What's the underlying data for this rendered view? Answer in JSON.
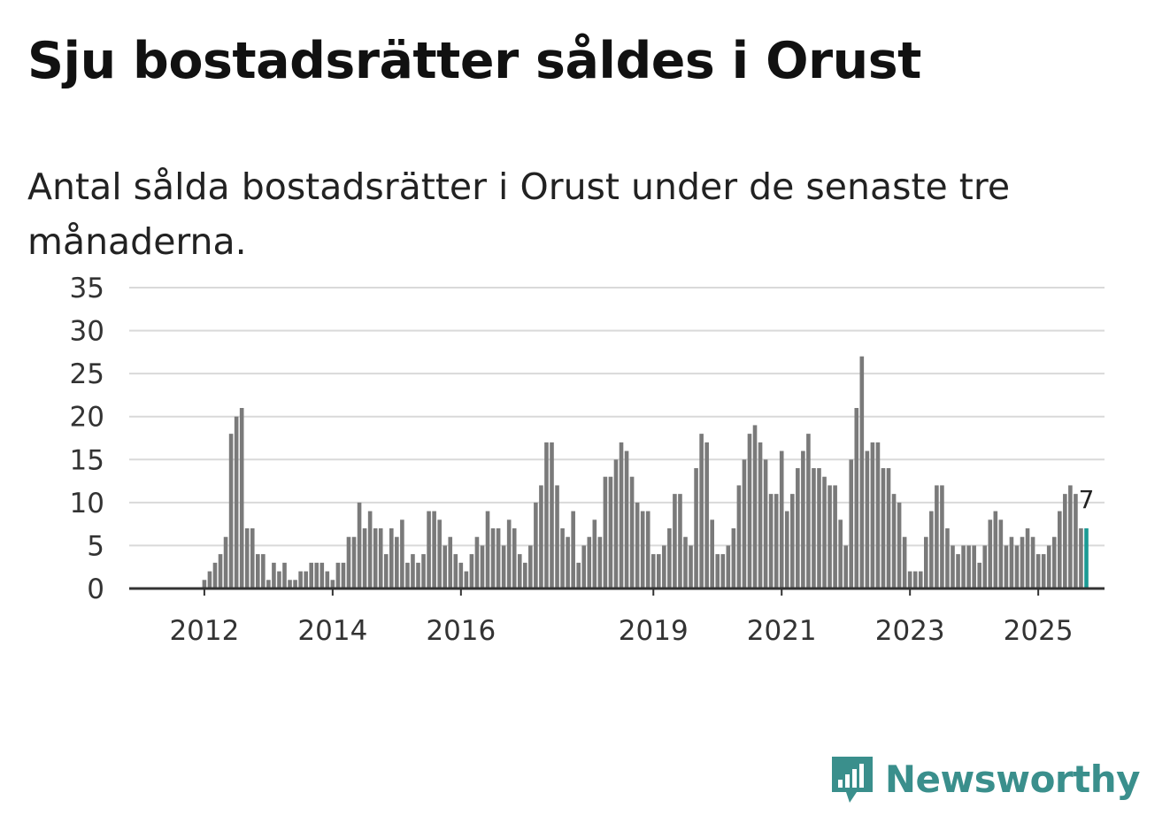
{
  "title": "Sju bostadsrätter såldes i Orust",
  "subtitle": "Antal sålda bostadsrätter i Orust under de senaste tre månaderna.",
  "brand": {
    "name": "Newsworthy",
    "color": "#3a8f8c",
    "icon": "newsworthy-logo-icon"
  },
  "chart_data": {
    "type": "bar",
    "title": "Antal sålda bostadsrätter",
    "xlabel": "",
    "ylabel": "",
    "ylim": [
      0,
      35
    ],
    "yticks": [
      0,
      5,
      10,
      15,
      20,
      25,
      30,
      35
    ],
    "grid": true,
    "bar_color": "#7a7a7a",
    "highlight_color": "#1b9a94",
    "x_tick_labels": [
      {
        "label": "2012",
        "index": 10
      },
      {
        "label": "2014",
        "index": 34
      },
      {
        "label": "2016",
        "index": 58
      },
      {
        "label": "2019",
        "index": 94
      },
      {
        "label": "2021",
        "index": 118
      },
      {
        "label": "2023",
        "index": 142
      },
      {
        "label": "2025",
        "index": 166
      }
    ],
    "values": [
      0,
      0,
      0,
      0,
      0,
      0,
      0,
      0,
      0,
      0,
      1,
      2,
      3,
      4,
      6,
      18,
      20,
      21,
      7,
      7,
      4,
      4,
      1,
      3,
      2,
      3,
      1,
      1,
      2,
      2,
      3,
      3,
      3,
      2,
      1,
      3,
      3,
      6,
      6,
      10,
      7,
      9,
      7,
      7,
      4,
      7,
      6,
      8,
      3,
      4,
      3,
      4,
      9,
      9,
      8,
      5,
      6,
      4,
      3,
      2,
      4,
      6,
      5,
      9,
      7,
      7,
      5,
      8,
      7,
      4,
      3,
      5,
      10,
      12,
      17,
      17,
      12,
      7,
      6,
      9,
      3,
      5,
      6,
      8,
      6,
      13,
      13,
      15,
      17,
      16,
      13,
      10,
      9,
      9,
      4,
      4,
      5,
      7,
      11,
      11,
      6,
      5,
      14,
      18,
      17,
      8,
      4,
      4,
      5,
      7,
      12,
      15,
      18,
      19,
      17,
      15,
      11,
      11,
      16,
      9,
      11,
      14,
      16,
      18,
      14,
      14,
      13,
      12,
      12,
      8,
      5,
      15,
      21,
      27,
      16,
      17,
      17,
      14,
      14,
      11,
      10,
      6,
      2,
      2,
      2,
      6,
      9,
      12,
      12,
      7,
      5,
      4,
      5,
      5,
      5,
      3,
      5,
      8,
      9,
      8,
      5,
      6,
      5,
      6,
      7,
      6,
      4,
      4,
      5,
      6,
      9,
      11,
      12,
      11,
      7,
      7
    ],
    "highlight_index": 175,
    "annotation": {
      "index": 175,
      "text": "7"
    }
  }
}
